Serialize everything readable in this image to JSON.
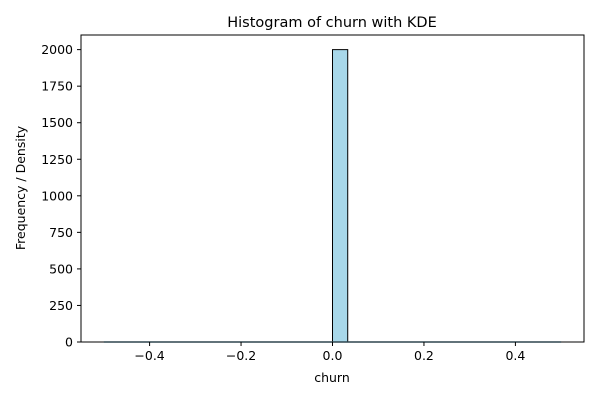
{
  "chart_data": {
    "type": "bar",
    "title": "Histogram of churn with KDE",
    "xlabel": "churn",
    "ylabel": "Frequency / Density",
    "xlim": [
      -0.55,
      0.55
    ],
    "ylim": [
      0,
      2100
    ],
    "xticks": [
      -0.4,
      -0.2,
      0.0,
      0.2,
      0.4
    ],
    "xtick_labels": [
      "−0.4",
      "−0.2",
      "0.0",
      "0.2",
      "0.4"
    ],
    "yticks": [
      0,
      250,
      500,
      750,
      1000,
      1250,
      1500,
      1750,
      2000
    ],
    "ytick_labels": [
      "0",
      "250",
      "500",
      "750",
      "1000",
      "1250",
      "1500",
      "1750",
      "2000"
    ],
    "grid": false,
    "series": [
      {
        "bins": [
          {
            "x0": 0.0,
            "x1": 0.0333,
            "count": 2000
          }
        ],
        "color": "#a8d8ea",
        "edgecolor": "#000000"
      }
    ],
    "kde_line": {
      "x": [
        -0.5,
        0.5
      ],
      "y": [
        0,
        0
      ],
      "color": "#87ceeb"
    }
  }
}
